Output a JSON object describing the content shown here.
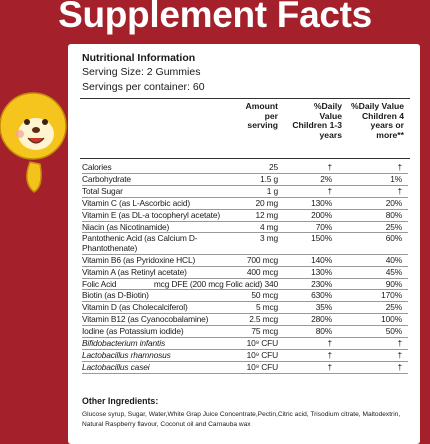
{
  "title": "Supplement Facts",
  "panel": {
    "heading": "Nutritional Information",
    "serving_size": "Serving Size: 2 Gummies",
    "servings_per_container": "Servings per container: 60",
    "columns": [
      "Amount per serving",
      "%Daily Value Children 1-3 years",
      "%Daily Value Children 4 years or more**"
    ],
    "rows": [
      [
        "Calories",
        "25",
        "†",
        "†"
      ],
      [
        "Carbohydrate",
        "1.5 g",
        "2%",
        "1%"
      ],
      [
        "Total Sugar",
        "1 g",
        "†",
        "†"
      ],
      [
        "Vitamin C (as L-Ascorbic acid)",
        "20 mg",
        "130%",
        "20%"
      ],
      [
        "Vitamin E (as DL-a tocopheryl acetate)",
        "12 mg",
        "200%",
        "80%"
      ],
      [
        "Niacin (as Nicotinamide)",
        "4 mg",
        "70%",
        "25%"
      ],
      [
        "Pantothenic Acid (as Calcium D-Phantothenate)",
        "3 mg",
        "150%",
        "60%"
      ],
      [
        "Vitamin B6 (as Pyridoxine HCL)",
        "700 mcg",
        "140%",
        "40%"
      ],
      [
        "Vitamin A (as Retinyl acetate)",
        "400 mcg",
        "130%",
        "45%"
      ],
      [
        "Folic Acid",
        "340 mcg DFE (200 mcg Folic acid)",
        "230%",
        "90%"
      ],
      [
        "Biotin (as D-Biotin)",
        "50 mcg",
        "630%",
        "170%"
      ],
      [
        "Vitamin D (as Cholecalciferol)",
        "5 mcg",
        "35%",
        "25%"
      ],
      [
        "Vitamin B12 (as Cyanocobalamine)",
        "2.5 mcg",
        "280%",
        "100%"
      ],
      [
        "Iodine (as Potassium iodide)",
        "75 mcg",
        "80%",
        "50%"
      ],
      [
        "Bifidobacterium infantis",
        "10⁹ CFU",
        "†",
        "†"
      ],
      [
        "Lactobacillus rhamnosus",
        "10⁹ CFU",
        "†",
        "†"
      ],
      [
        "Lactobacillus casei",
        "10⁹ CFU",
        "†",
        "†"
      ]
    ],
    "other_ingredients": {
      "heading": "Other Ingredients:",
      "text": "Glucose syrup, Sugar, Water,White Grap Juice Concentrate,Pectin,Citric acid, Trisodium citrate, Maltodextrin, Natural Raspberry flavour, Coconut oil and Carnauba wax"
    }
  }
}
